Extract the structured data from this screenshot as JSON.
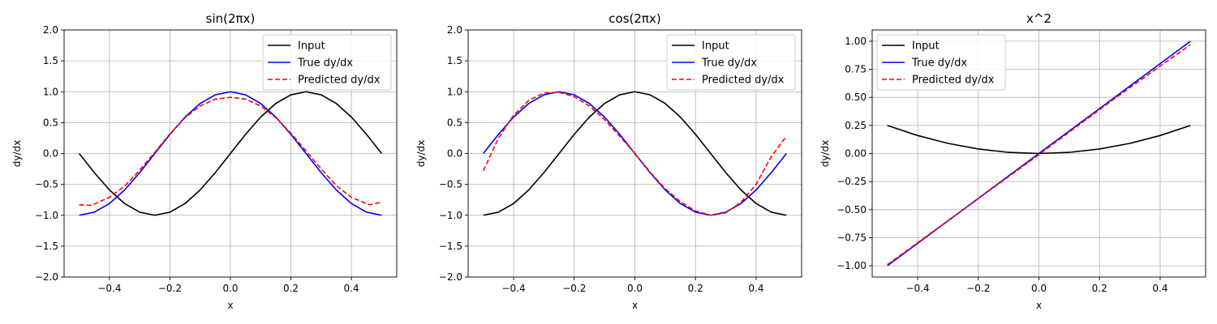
{
  "chart_data": [
    {
      "type": "line",
      "title": "sin(2πx)",
      "xlabel": "x",
      "ylabel": "dy/dx",
      "xlim": [
        -0.55,
        0.55
      ],
      "ylim": [
        -2.0,
        2.0
      ],
      "xticks": [
        -0.4,
        -0.2,
        0.0,
        0.2,
        0.4
      ],
      "xtick_labels": [
        "−0.4",
        "−0.2",
        "0.0",
        "0.2",
        "0.4"
      ],
      "yticks": [
        -2.0,
        -1.5,
        -1.0,
        -0.5,
        0.0,
        0.5,
        1.0,
        1.5,
        2.0
      ],
      "ytick_labels": [
        "−2.0",
        "−1.5",
        "−1.0",
        "−0.5",
        "0.0",
        "0.5",
        "1.0",
        "1.5",
        "2.0"
      ],
      "grid": true,
      "legend_position": "top-right",
      "series": [
        {
          "name": "Input",
          "color": "#000000",
          "style": "solid",
          "x": [
            -0.5,
            -0.45,
            -0.4,
            -0.35,
            -0.3,
            -0.25,
            -0.2,
            -0.15,
            -0.1,
            -0.05,
            0.0,
            0.05,
            0.1,
            0.15,
            0.2,
            0.25,
            0.3,
            0.35,
            0.4,
            0.45,
            0.5
          ],
          "y": [
            0.0,
            -0.31,
            -0.59,
            -0.81,
            -0.95,
            -1.0,
            -0.95,
            -0.81,
            -0.59,
            -0.31,
            0.0,
            0.31,
            0.59,
            0.81,
            0.95,
            1.0,
            0.95,
            0.81,
            0.59,
            0.31,
            0.0
          ]
        },
        {
          "name": "True dy/dx",
          "color": "#0000ff",
          "style": "solid",
          "x": [
            -0.5,
            -0.45,
            -0.4,
            -0.35,
            -0.3,
            -0.25,
            -0.2,
            -0.15,
            -0.1,
            -0.05,
            0.0,
            0.05,
            0.1,
            0.15,
            0.2,
            0.25,
            0.3,
            0.35,
            0.4,
            0.45,
            0.5
          ],
          "y": [
            -1.0,
            -0.95,
            -0.81,
            -0.59,
            -0.31,
            0.0,
            0.31,
            0.59,
            0.81,
            0.95,
            1.0,
            0.95,
            0.81,
            0.59,
            0.31,
            0.0,
            -0.31,
            -0.59,
            -0.81,
            -0.95,
            -1.0
          ]
        },
        {
          "name": "Predicted dy/dx",
          "color": "#ff0000",
          "style": "dashed",
          "x": [
            -0.5,
            -0.46,
            -0.4,
            -0.35,
            -0.3,
            -0.25,
            -0.2,
            -0.15,
            -0.1,
            -0.05,
            0.0,
            0.05,
            0.1,
            0.15,
            0.2,
            0.25,
            0.3,
            0.35,
            0.4,
            0.46,
            0.5
          ],
          "y": [
            -0.83,
            -0.84,
            -0.71,
            -0.53,
            -0.27,
            0.02,
            0.32,
            0.58,
            0.77,
            0.88,
            0.91,
            0.88,
            0.77,
            0.58,
            0.33,
            0.04,
            -0.25,
            -0.52,
            -0.71,
            -0.83,
            -0.79
          ]
        }
      ]
    },
    {
      "type": "line",
      "title": "cos(2πx)",
      "xlabel": "x",
      "ylabel": "dy/dx",
      "xlim": [
        -0.55,
        0.55
      ],
      "ylim": [
        -2.0,
        2.0
      ],
      "xticks": [
        -0.4,
        -0.2,
        0.0,
        0.2,
        0.4
      ],
      "xtick_labels": [
        "−0.4",
        "−0.2",
        "0.0",
        "0.2",
        "0.4"
      ],
      "yticks": [
        -2.0,
        -1.5,
        -1.0,
        -0.5,
        0.0,
        0.5,
        1.0,
        1.5,
        2.0
      ],
      "ytick_labels": [
        "−2.0",
        "−1.5",
        "−1.0",
        "−0.5",
        "0.0",
        "0.5",
        "1.0",
        "1.5",
        "2.0"
      ],
      "grid": true,
      "legend_position": "top-right",
      "series": [
        {
          "name": "Input",
          "color": "#000000",
          "style": "solid",
          "x": [
            -0.5,
            -0.45,
            -0.4,
            -0.35,
            -0.3,
            -0.25,
            -0.2,
            -0.15,
            -0.1,
            -0.05,
            0.0,
            0.05,
            0.1,
            0.15,
            0.2,
            0.25,
            0.3,
            0.35,
            0.4,
            0.45,
            0.5
          ],
          "y": [
            -1.0,
            -0.95,
            -0.81,
            -0.59,
            -0.31,
            0.0,
            0.31,
            0.59,
            0.81,
            0.95,
            1.0,
            0.95,
            0.81,
            0.59,
            0.31,
            0.0,
            -0.31,
            -0.59,
            -0.81,
            -0.95,
            -1.0
          ]
        },
        {
          "name": "True dy/dx",
          "color": "#0000ff",
          "style": "solid",
          "x": [
            -0.5,
            -0.45,
            -0.4,
            -0.35,
            -0.3,
            -0.25,
            -0.2,
            -0.15,
            -0.1,
            -0.05,
            0.0,
            0.05,
            0.1,
            0.15,
            0.2,
            0.25,
            0.3,
            0.35,
            0.4,
            0.45,
            0.5
          ],
          "y": [
            0.0,
            0.31,
            0.59,
            0.81,
            0.95,
            1.0,
            0.95,
            0.81,
            0.59,
            0.31,
            0.0,
            -0.31,
            -0.59,
            -0.81,
            -0.95,
            -1.0,
            -0.95,
            -0.81,
            -0.59,
            -0.31,
            0.0
          ]
        },
        {
          "name": "Predicted dy/dx",
          "color": "#ff0000",
          "style": "dashed",
          "x": [
            -0.5,
            -0.45,
            -0.4,
            -0.35,
            -0.3,
            -0.25,
            -0.2,
            -0.15,
            -0.1,
            -0.05,
            0.0,
            0.05,
            0.1,
            0.15,
            0.2,
            0.25,
            0.3,
            0.35,
            0.4,
            0.45,
            0.5
          ],
          "y": [
            -0.28,
            0.25,
            0.62,
            0.86,
            0.98,
            0.99,
            0.92,
            0.77,
            0.55,
            0.28,
            0.0,
            -0.3,
            -0.57,
            -0.78,
            -0.93,
            -1.0,
            -0.96,
            -0.79,
            -0.5,
            -0.05,
            0.28
          ]
        }
      ]
    },
    {
      "type": "line",
      "title": "x^2",
      "xlabel": "x",
      "ylabel": "dy/dx",
      "xlim": [
        -0.55,
        0.55
      ],
      "ylim": [
        -1.1,
        1.1
      ],
      "xticks": [
        -0.4,
        -0.2,
        0.0,
        0.2,
        0.4
      ],
      "xtick_labels": [
        "−0.4",
        "−0.2",
        "0.0",
        "0.2",
        "0.4"
      ],
      "yticks": [
        -1.0,
        -0.75,
        -0.5,
        -0.25,
        0.0,
        0.25,
        0.5,
        0.75,
        1.0
      ],
      "ytick_labels": [
        "−1.00",
        "−0.75",
        "−0.50",
        "−0.25",
        "0.00",
        "0.25",
        "0.50",
        "0.75",
        "1.00"
      ],
      "grid": true,
      "legend_position": "top-left",
      "series": [
        {
          "name": "Input",
          "color": "#000000",
          "style": "solid",
          "x": [
            -0.5,
            -0.4,
            -0.3,
            -0.2,
            -0.1,
            0.0,
            0.1,
            0.2,
            0.3,
            0.4,
            0.5
          ],
          "y": [
            0.25,
            0.16,
            0.09,
            0.04,
            0.01,
            0.0,
            0.01,
            0.04,
            0.09,
            0.16,
            0.25
          ]
        },
        {
          "name": "True dy/dx",
          "color": "#0000ff",
          "style": "solid",
          "x": [
            -0.5,
            0.5
          ],
          "y": [
            -1.0,
            1.0
          ]
        },
        {
          "name": "Predicted dy/dx",
          "color": "#ff0000",
          "style": "dashed",
          "x": [
            -0.5,
            -0.25,
            0.0,
            0.25,
            0.5
          ],
          "y": [
            -0.99,
            -0.5,
            -0.01,
            0.49,
            0.97
          ]
        }
      ]
    }
  ]
}
